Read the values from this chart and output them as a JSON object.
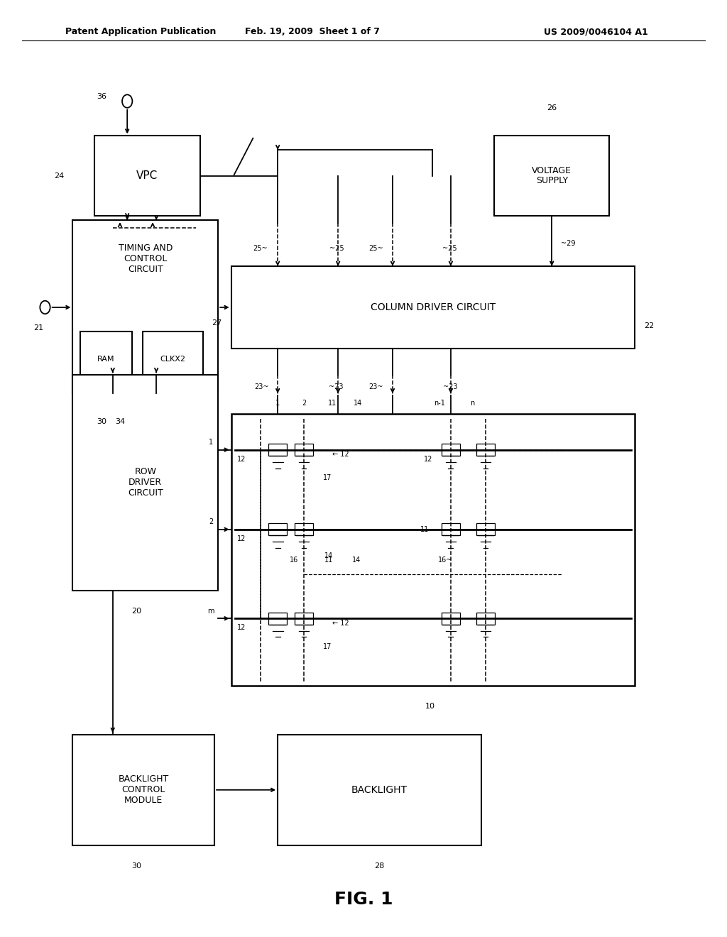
{
  "bg": "#ffffff",
  "h1": "Patent Application Publication",
  "h2": "Feb. 19, 2009  Sheet 1 of 7",
  "h3": "US 2009/0046104 A1",
  "fig": "FIG. 1"
}
